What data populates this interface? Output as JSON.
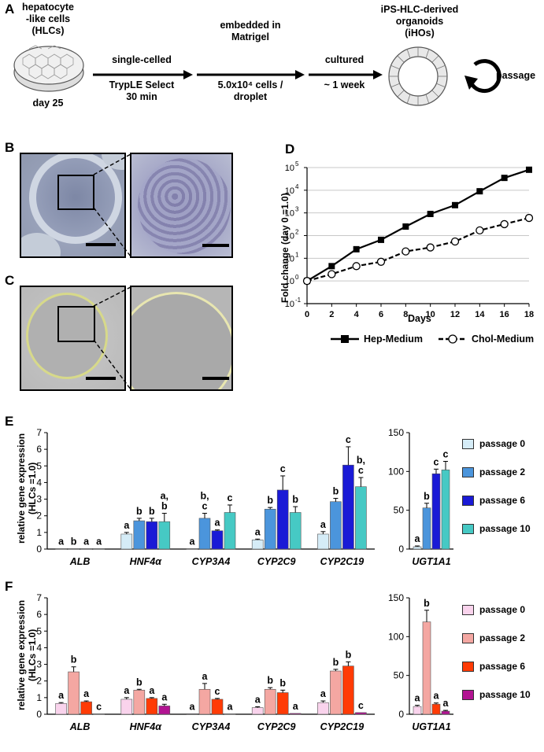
{
  "panels": {
    "A": "A",
    "B": "B",
    "C": "C",
    "D": "D",
    "E": "E",
    "F": "F"
  },
  "schema": {
    "start": {
      "label": "hepatocyte\n-like cells\n(HLCs)",
      "day": "day 25"
    },
    "steps": [
      {
        "top": "single-celled",
        "bottom": "TrypLE Select\n30 min"
      },
      {
        "top": "embedded in\nMatrigel",
        "bottom": "5.0x10⁴ cells /\ndroplet"
      },
      {
        "top": "cultured",
        "bottom": "~ 1 week"
      }
    ],
    "end": "iPS-HLC-derived\norganoids\n(iHOs)",
    "passage": "passage"
  },
  "colors": {
    "E": [
      "#d5ecf7",
      "#4b95dc",
      "#1a1ad6",
      "#46c9c4"
    ],
    "F": [
      "#f9d3ec",
      "#f4a7a2",
      "#ff3b05",
      "#b21392"
    ]
  },
  "chart_d": {
    "type": "line",
    "xlabel": "Days",
    "ylabel": "Fold change (day 0 =1.0)",
    "x": [
      0,
      2,
      4,
      6,
      8,
      10,
      12,
      14,
      16,
      18
    ],
    "xticks": [
      "0",
      "2",
      "4",
      "6",
      "8",
      "10",
      "12",
      "14",
      "16",
      "18"
    ],
    "yticks": [
      "10",
      "10",
      "10",
      "10",
      "10",
      "10",
      "10"
    ],
    "yexp": [
      "-1",
      "0",
      "1",
      "2",
      "3",
      "4",
      "5"
    ],
    "series": [
      {
        "name": "Hep-Medium",
        "values": [
          1,
          4.5,
          25,
          65,
          250,
          900,
          2200,
          9000,
          35000,
          80000
        ]
      },
      {
        "name": "Chol-Medium",
        "values": [
          1,
          2,
          4.5,
          7,
          20,
          30,
          55,
          170,
          320,
          600
        ]
      }
    ]
  },
  "chart_data": [
    {
      "type": "bar",
      "ylabel": "relative gene expression\n(HLCs =1.0)",
      "categories": [
        "ALB",
        "HNF4α",
        "CYP3A4",
        "CYP2C9",
        "CYP2C19"
      ],
      "ylim": [
        0,
        7
      ],
      "yticks": [
        "0",
        "1",
        "2",
        "3",
        "4",
        "5",
        "6",
        "7"
      ],
      "series": [
        {
          "name": "passage 0",
          "values": [
            0.02,
            0.9,
            0.02,
            0.55,
            0.9
          ],
          "errors": [
            0,
            0.1,
            0,
            0.05,
            0.15
          ],
          "letters": [
            "a",
            "a",
            "a",
            "a",
            "a"
          ]
        },
        {
          "name": "passage 2",
          "values": [
            0.02,
            1.7,
            1.85,
            2.4,
            2.85
          ],
          "errors": [
            0,
            0.15,
            0.3,
            0.1,
            0.2
          ],
          "letters": [
            "b",
            "b",
            "b,\nc",
            "b",
            "b"
          ]
        },
        {
          "name": "passage 6",
          "values": [
            0.02,
            1.65,
            1.1,
            3.55,
            5.05
          ],
          "errors": [
            0,
            0.2,
            0.05,
            0.85,
            1.1
          ],
          "letters": [
            "a",
            "b",
            "a",
            "c",
            "c"
          ]
        },
        {
          "name": "passage 10",
          "values": [
            0.02,
            1.65,
            2.2,
            2.2,
            3.75
          ],
          "errors": [
            0,
            0.5,
            0.45,
            0.35,
            0.55
          ],
          "letters": [
            "a",
            "a,\nb",
            "c",
            "b",
            "b,\nc"
          ]
        }
      ]
    },
    {
      "type": "bar",
      "categories": [
        "UGT1A1"
      ],
      "ylim": [
        0,
        150
      ],
      "yticks": [
        "0",
        "50",
        "100",
        "150"
      ],
      "series": [
        {
          "name": "passage 0",
          "values": [
            3
          ],
          "errors": [
            1
          ],
          "letters": [
            "a"
          ]
        },
        {
          "name": "passage 2",
          "values": [
            53
          ],
          "errors": [
            6
          ],
          "letters": [
            "b"
          ]
        },
        {
          "name": "passage 6",
          "values": [
            97
          ],
          "errors": [
            6
          ],
          "letters": [
            "c"
          ]
        },
        {
          "name": "passage 10",
          "values": [
            102
          ],
          "errors": [
            11
          ],
          "letters": [
            "c"
          ]
        }
      ]
    },
    {
      "type": "bar",
      "ylabel": "relative gene expression\n(HLCs =1.0)",
      "categories": [
        "ALB",
        "HNF4α",
        "CYP3A4",
        "CYP2C9",
        "CYP2C19"
      ],
      "ylim": [
        0,
        7
      ],
      "yticks": [
        "0",
        "1",
        "2",
        "3",
        "4",
        "5",
        "6",
        "7"
      ],
      "series": [
        {
          "name": "passage 0",
          "values": [
            0.65,
            0.9,
            0.03,
            0.4,
            0.7
          ],
          "errors": [
            0.05,
            0.1,
            0,
            0.05,
            0.1
          ],
          "letters": [
            "a",
            "a",
            "a",
            "a",
            "a"
          ]
        },
        {
          "name": "passage 2",
          "values": [
            2.55,
            1.45,
            1.5,
            1.5,
            2.6
          ],
          "errors": [
            0.3,
            0.05,
            0.35,
            0.1,
            0.1
          ],
          "letters": [
            "b",
            "b",
            "a",
            "b",
            "b"
          ]
        },
        {
          "name": "passage 6",
          "values": [
            0.75,
            0.95,
            0.9,
            1.3,
            2.9
          ],
          "errors": [
            0.05,
            0.05,
            0.05,
            0.15,
            0.25
          ],
          "letters": [
            "a",
            "a",
            "c",
            "b",
            "b"
          ]
        },
        {
          "name": "passage 10",
          "values": [
            0.02,
            0.5,
            0.02,
            0.05,
            0.1
          ],
          "errors": [
            0,
            0.1,
            0,
            0,
            0
          ],
          "letters": [
            "c",
            "a",
            "a",
            "a",
            "c"
          ]
        }
      ]
    },
    {
      "type": "bar",
      "categories": [
        "UGT1A1"
      ],
      "ylim": [
        0,
        150
      ],
      "yticks": [
        "0",
        "50",
        "100",
        "150"
      ],
      "series": [
        {
          "name": "passage 0",
          "values": [
            10
          ],
          "errors": [
            1.5
          ],
          "letters": [
            "a"
          ]
        },
        {
          "name": "passage 2",
          "values": [
            119
          ],
          "errors": [
            15
          ],
          "letters": [
            "b"
          ]
        },
        {
          "name": "passage 6",
          "values": [
            13
          ],
          "errors": [
            1.5
          ],
          "letters": [
            "a"
          ]
        },
        {
          "name": "passage 10",
          "values": [
            4
          ],
          "errors": [
            1
          ],
          "letters": [
            "a"
          ]
        }
      ]
    }
  ]
}
